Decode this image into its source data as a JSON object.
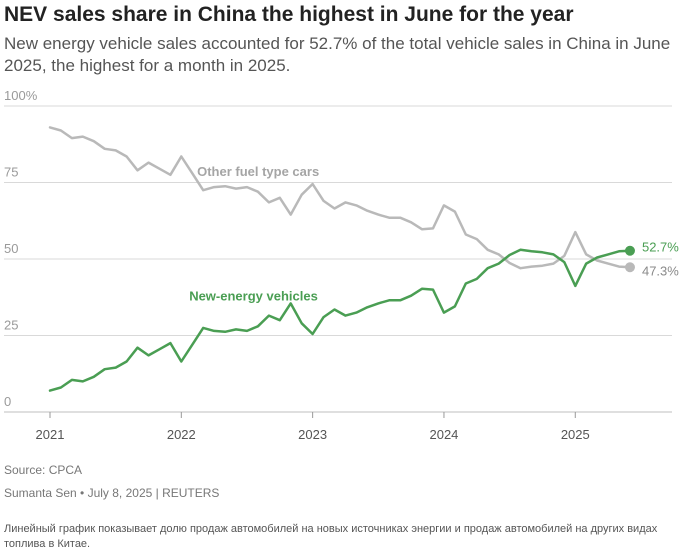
{
  "title": "NEV sales share in China the highest in June for the year",
  "subtitle": "New energy vehicle sales accounted for 52.7% of the total vehicle sales in China in June 2025, the highest for a month in 2025.",
  "source": "Source: CPCA",
  "byline": "Sumanta Sen • July 8, 2025 | REUTERS",
  "note": "Линейный график показывает долю продаж автомобилей на новых источниках энергии и продаж автомобилей на других видах топлива в Китае.",
  "colors": {
    "nev": "#4a9e53",
    "other": "#b9b9b9",
    "grid": "#d9d9d9",
    "baseline": "#bfbfbf"
  },
  "chart_data": {
    "type": "line",
    "title": "NEV sales share in China the highest in June for the year",
    "xlabel": "",
    "ylabel": "",
    "ylim": [
      0,
      100
    ],
    "xlim": [
      2021.0,
      2025.4167
    ],
    "yticks": [
      0,
      25,
      50,
      75,
      100
    ],
    "ytick_labels": [
      "0",
      "25",
      "50",
      "75",
      "100%"
    ],
    "xticks": [
      2021,
      2022,
      2023,
      2024,
      2025
    ],
    "xtick_labels": [
      "2021",
      "2022",
      "2023",
      "2024",
      "2025"
    ],
    "grid": true,
    "x_start": 2021.0,
    "x_step": 0.08333,
    "series": [
      {
        "name": "Other fuel type cars",
        "label": "Other fuel type cars",
        "end_label": "47.3%",
        "values": [
          93.0,
          92.0,
          89.5,
          90.0,
          88.5,
          86.0,
          85.5,
          83.5,
          79.0,
          81.5,
          79.5,
          77.5,
          83.5,
          78.0,
          72.5,
          73.5,
          73.8,
          73.0,
          73.5,
          72.0,
          68.5,
          70.0,
          64.5,
          71.0,
          74.5,
          69.0,
          66.5,
          68.5,
          67.5,
          65.8,
          64.5,
          63.5,
          63.5,
          62.0,
          59.7,
          60.0,
          67.5,
          65.5,
          58.0,
          56.5,
          53.0,
          51.5,
          48.7,
          47.0,
          47.5,
          47.8,
          48.5,
          51.0,
          58.8,
          51.5,
          49.5,
          48.5,
          47.5,
          47.3
        ]
      },
      {
        "name": "New-energy vehicles",
        "label": "New-energy vehicles",
        "end_label": "52.7%",
        "values": [
          7.0,
          8.0,
          10.5,
          10.0,
          11.5,
          14.0,
          14.5,
          16.5,
          21.0,
          18.5,
          20.5,
          22.5,
          16.5,
          22.0,
          27.5,
          26.5,
          26.2,
          27.0,
          26.5,
          28.0,
          31.5,
          30.0,
          35.5,
          29.0,
          25.5,
          31.0,
          33.5,
          31.5,
          32.5,
          34.2,
          35.5,
          36.5,
          36.5,
          38.0,
          40.3,
          40.0,
          32.5,
          34.5,
          42.0,
          43.5,
          47.0,
          48.5,
          51.3,
          53.0,
          52.5,
          52.2,
          51.5,
          49.0,
          41.2,
          48.5,
          50.5,
          51.5,
          52.5,
          52.7
        ]
      }
    ]
  }
}
